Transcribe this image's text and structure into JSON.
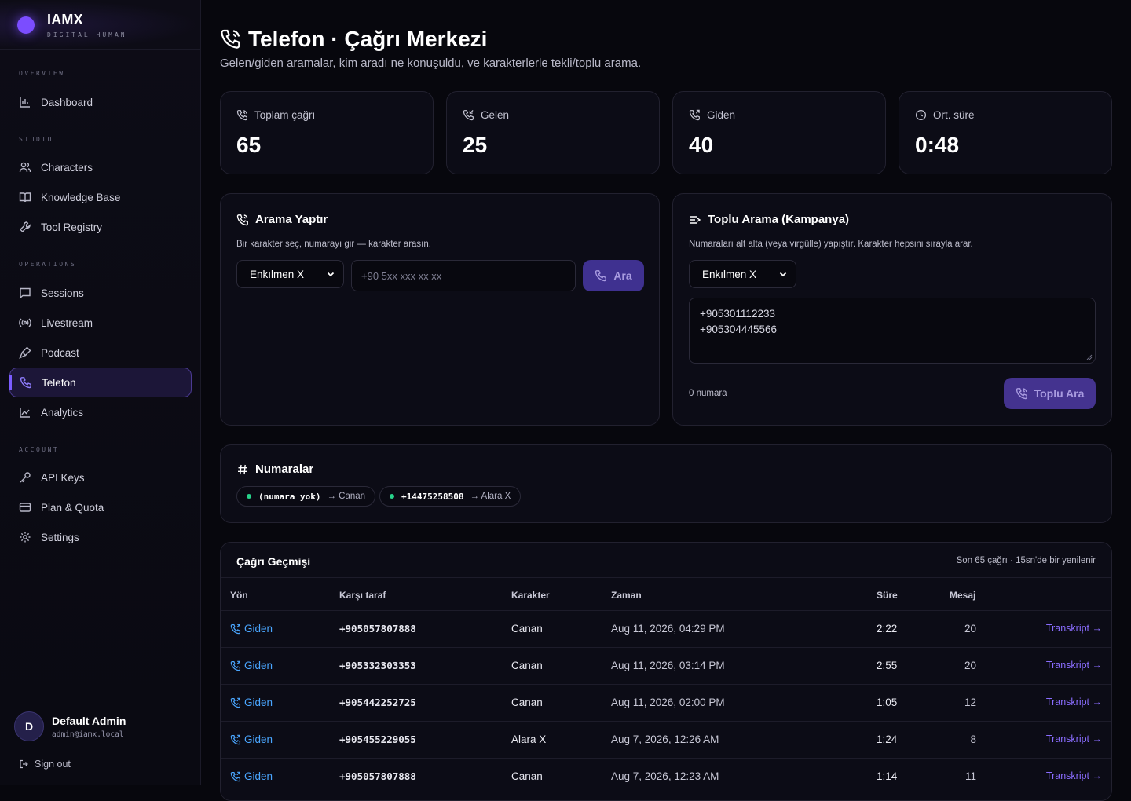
{
  "brand": {
    "name": "IAMX",
    "subtitle": "DIGITAL HUMAN",
    "accent": "#7b4dff"
  },
  "sidebar": {
    "sections": [
      {
        "label": "OVERVIEW",
        "items": [
          {
            "label": "Dashboard",
            "icon": "bar-chart-icon"
          }
        ]
      },
      {
        "label": "STUDIO",
        "items": [
          {
            "label": "Characters",
            "icon": "users-icon"
          },
          {
            "label": "Knowledge Base",
            "icon": "book-icon"
          },
          {
            "label": "Tool Registry",
            "icon": "wrench-icon"
          }
        ]
      },
      {
        "label": "OPERATIONS",
        "items": [
          {
            "label": "Sessions",
            "icon": "chat-icon"
          },
          {
            "label": "Livestream",
            "icon": "broadcast-icon"
          },
          {
            "label": "Podcast",
            "icon": "mic-icon"
          },
          {
            "label": "Telefon",
            "icon": "phone-icon",
            "active": true
          },
          {
            "label": "Analytics",
            "icon": "line-chart-icon"
          }
        ]
      },
      {
        "label": "ACCOUNT",
        "items": [
          {
            "label": "API Keys",
            "icon": "key-icon"
          },
          {
            "label": "Plan & Quota",
            "icon": "credit-card-icon"
          },
          {
            "label": "Settings",
            "icon": "gear-icon"
          }
        ]
      }
    ],
    "user": {
      "initial": "D",
      "name": "Default Admin",
      "email": "admin@iamx.local"
    },
    "signout": "Sign out"
  },
  "header": {
    "title": "Telefon · Çağrı Merkezi",
    "subtitle": "Gelen/giden aramalar, kim aradı ne konuşuldu, ve karakterlerle tekli/toplu arama."
  },
  "stats": [
    {
      "label": "Toplam çağrı",
      "value": "65",
      "icon": "phone-call-icon"
    },
    {
      "label": "Gelen",
      "value": "25",
      "icon": "phone-incoming-icon"
    },
    {
      "label": "Giden",
      "value": "40",
      "icon": "phone-outgoing-icon"
    },
    {
      "label": "Ort. süre",
      "value": "0:48",
      "icon": "clock-icon"
    }
  ],
  "single_call": {
    "title": "Arama Yaptır",
    "description": "Bir karakter seç, numarayı gir — karakter arasın.",
    "character": "Enkılmen X",
    "phone_placeholder": "+90 5xx xxx xx xx",
    "button": "Ara"
  },
  "bulk_call": {
    "title": "Toplu Arama (Kampanya)",
    "description": "Numaraları alt alta (veya virgülle) yapıştır. Karakter hepsini sırayla arar.",
    "character": "Enkılmen X",
    "numbers_line1": "+905301112233",
    "numbers_line2": "+905304445566",
    "count": "0 numara",
    "button": "Toplu Ara"
  },
  "numbers": {
    "title": "Numaralar",
    "items": [
      {
        "number": "(numara yok)",
        "character": "→ Canan"
      },
      {
        "number": "+14475258508",
        "character": "→ Alara X"
      }
    ]
  },
  "history": {
    "title": "Çağrı Geçmişi",
    "meta": "Son 65 çağrı · 15sn'de bir yenilenir",
    "columns": [
      "Yön",
      "Karşı taraf",
      "Karakter",
      "Zaman",
      "Süre",
      "Mesaj"
    ],
    "rows": [
      {
        "direction": "Giden",
        "number": "+905057807888",
        "character": "Canan",
        "time": "Aug 11, 2026, 04:29 PM",
        "duration": "2:22",
        "messages": "20",
        "link": "Transkript →"
      },
      {
        "direction": "Giden",
        "number": "+905332303353",
        "character": "Canan",
        "time": "Aug 11, 2026, 03:14 PM",
        "duration": "2:55",
        "messages": "20",
        "link": "Transkript →"
      },
      {
        "direction": "Giden",
        "number": "+905442252725",
        "character": "Canan",
        "time": "Aug 11, 2026, 02:00 PM",
        "duration": "1:05",
        "messages": "12",
        "link": "Transkript →"
      },
      {
        "direction": "Giden",
        "number": "+905455229055",
        "character": "Alara X",
        "time": "Aug 7, 2026, 12:26 AM",
        "duration": "1:24",
        "messages": "8",
        "link": "Transkript →"
      },
      {
        "direction": "Giden",
        "number": "+905057807888",
        "character": "Canan",
        "time": "Aug 7, 2026, 12:23 AM",
        "duration": "1:14",
        "messages": "11",
        "link": "Transkript →"
      }
    ]
  }
}
